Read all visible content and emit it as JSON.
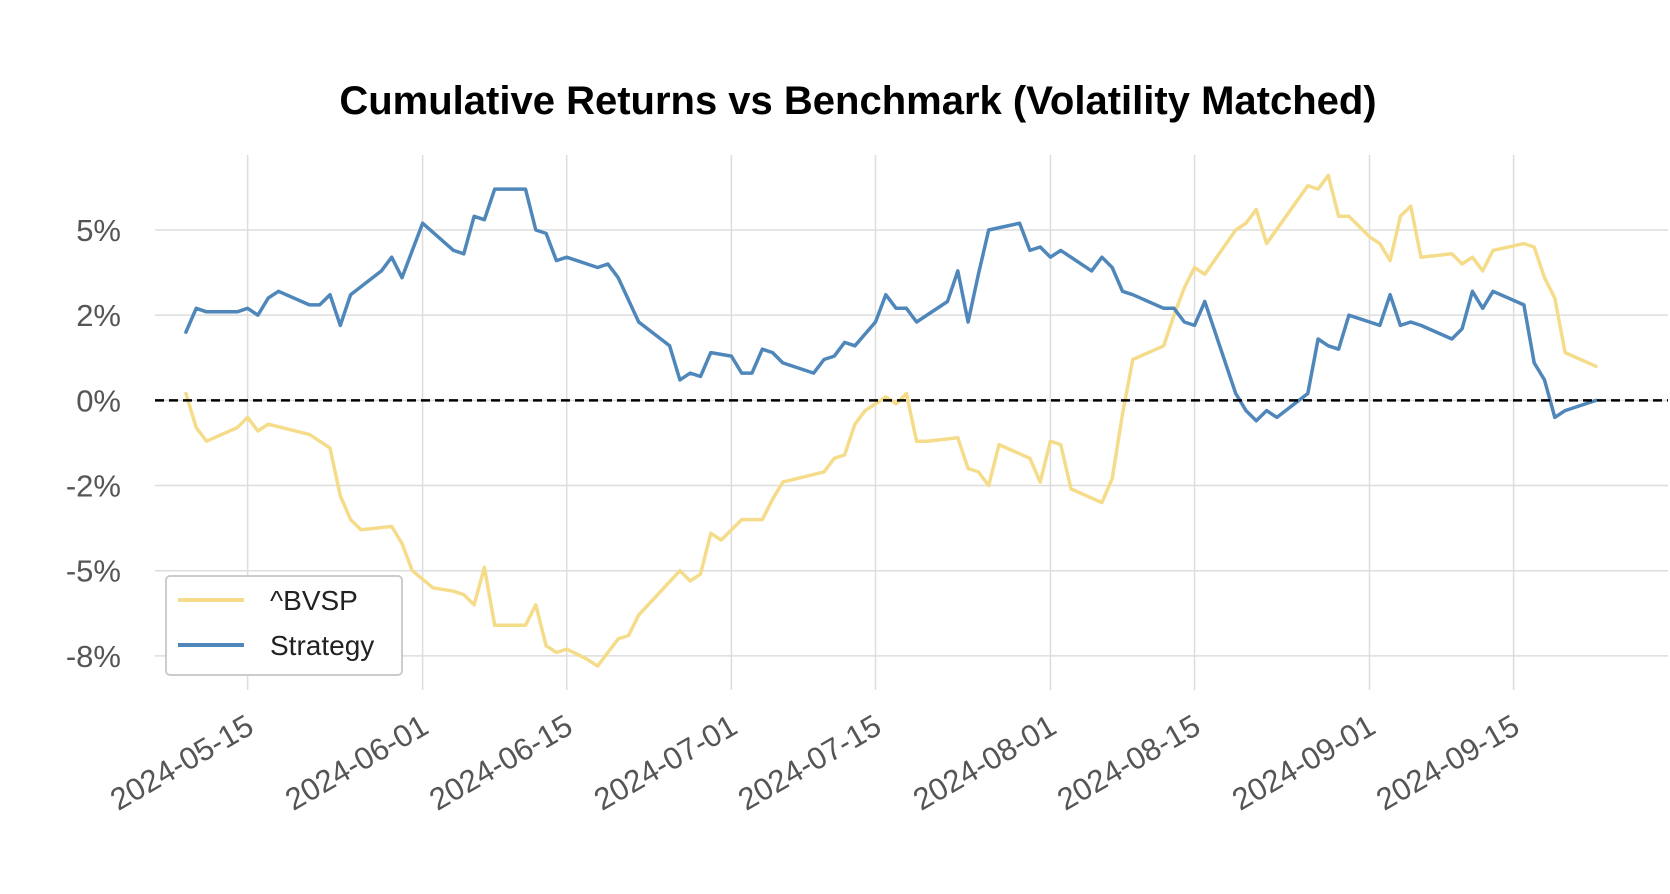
{
  "chart_data": {
    "type": "line",
    "title": "Cumulative Returns vs Benchmark (Volatility Matched)",
    "xlabel": "",
    "ylabel": "",
    "x_type": "date",
    "xlim": [
      "2024-05-06",
      "2024-09-30"
    ],
    "ylim": [
      -0.085,
      0.072
    ],
    "y_ticks": [
      {
        "value": 0.05,
        "label": "5%"
      },
      {
        "value": 0.025,
        "label": "2%"
      },
      {
        "value": 0,
        "label": "0%"
      },
      {
        "value": -0.025,
        "label": "-2%"
      },
      {
        "value": -0.05,
        "label": "-5%"
      },
      {
        "value": -0.075,
        "label": "-8%"
      }
    ],
    "x_ticks": [
      {
        "value": "2024-05-15",
        "label": "2024-05-15"
      },
      {
        "value": "2024-06-01",
        "label": "2024-06-01"
      },
      {
        "value": "2024-06-15",
        "label": "2024-06-15"
      },
      {
        "value": "2024-07-01",
        "label": "2024-07-01"
      },
      {
        "value": "2024-07-15",
        "label": "2024-07-15"
      },
      {
        "value": "2024-08-01",
        "label": "2024-08-01"
      },
      {
        "value": "2024-08-15",
        "label": "2024-08-15"
      },
      {
        "value": "2024-09-01",
        "label": "2024-09-01"
      },
      {
        "value": "2024-09-15",
        "label": "2024-09-15"
      }
    ],
    "grid": true,
    "legend_position": "lower-left",
    "reference_line": {
      "y": 0,
      "style": "dashed",
      "color": "#000000"
    },
    "series": [
      {
        "name": "^BVSP",
        "color": "#f5dc8a",
        "points": [
          [
            "2024-05-09",
            0.002
          ],
          [
            "2024-05-10",
            -0.008
          ],
          [
            "2024-05-11",
            -0.012
          ],
          [
            "2024-05-14",
            -0.008
          ],
          [
            "2024-05-15",
            -0.005
          ],
          [
            "2024-05-16",
            -0.009
          ],
          [
            "2024-05-17",
            -0.007
          ],
          [
            "2024-05-21",
            -0.01
          ],
          [
            "2024-05-22",
            -0.012
          ],
          [
            "2024-05-23",
            -0.014
          ],
          [
            "2024-05-24",
            -0.028
          ],
          [
            "2024-05-25",
            -0.035
          ],
          [
            "2024-05-26",
            -0.038
          ],
          [
            "2024-05-29",
            -0.037
          ],
          [
            "2024-05-30",
            -0.042
          ],
          [
            "2024-05-31",
            -0.05
          ],
          [
            "2024-06-02",
            -0.055
          ],
          [
            "2024-06-04",
            -0.056
          ],
          [
            "2024-06-05",
            -0.057
          ],
          [
            "2024-06-06",
            -0.06
          ],
          [
            "2024-06-07",
            -0.049
          ],
          [
            "2024-06-08",
            -0.066
          ],
          [
            "2024-06-11",
            -0.066
          ],
          [
            "2024-06-12",
            -0.06
          ],
          [
            "2024-06-13",
            -0.072
          ],
          [
            "2024-06-14",
            -0.074
          ],
          [
            "2024-06-15",
            -0.073
          ],
          [
            "2024-06-17",
            -0.076
          ],
          [
            "2024-06-18",
            -0.078
          ],
          [
            "2024-06-20",
            -0.07
          ],
          [
            "2024-06-21",
            -0.069
          ],
          [
            "2024-06-22",
            -0.063
          ],
          [
            "2024-06-26",
            -0.05
          ],
          [
            "2024-06-27",
            -0.053
          ],
          [
            "2024-06-28",
            -0.051
          ],
          [
            "2024-06-29",
            -0.039
          ],
          [
            "2024-06-30",
            -0.041
          ],
          [
            "2024-07-02",
            -0.035
          ],
          [
            "2024-07-03",
            -0.035
          ],
          [
            "2024-07-04",
            -0.035
          ],
          [
            "2024-07-05",
            -0.029
          ],
          [
            "2024-07-06",
            -0.024
          ],
          [
            "2024-07-10",
            -0.021
          ],
          [
            "2024-07-11",
            -0.017
          ],
          [
            "2024-07-12",
            -0.016
          ],
          [
            "2024-07-13",
            -0.007
          ],
          [
            "2024-07-14",
            -0.003
          ],
          [
            "2024-07-15",
            -0.001
          ],
          [
            "2024-07-16",
            0.001
          ],
          [
            "2024-07-17",
            -0.001
          ],
          [
            "2024-07-18",
            0.002
          ],
          [
            "2024-07-19",
            -0.012
          ],
          [
            "2024-07-20",
            -0.012
          ],
          [
            "2024-07-23",
            -0.011
          ],
          [
            "2024-07-24",
            -0.02
          ],
          [
            "2024-07-25",
            -0.021
          ],
          [
            "2024-07-26",
            -0.025
          ],
          [
            "2024-07-27",
            -0.013
          ],
          [
            "2024-07-30",
            -0.017
          ],
          [
            "2024-07-31",
            -0.024
          ],
          [
            "2024-08-01",
            -0.012
          ],
          [
            "2024-08-02",
            -0.013
          ],
          [
            "2024-08-03",
            -0.026
          ],
          [
            "2024-08-06",
            -0.03
          ],
          [
            "2024-08-07",
            -0.023
          ],
          [
            "2024-08-08",
            -0.004
          ],
          [
            "2024-08-09",
            0.012
          ],
          [
            "2024-08-12",
            0.016
          ],
          [
            "2024-08-13",
            0.025
          ],
          [
            "2024-08-14",
            0.033
          ],
          [
            "2024-08-15",
            0.039
          ],
          [
            "2024-08-16",
            0.037
          ],
          [
            "2024-08-19",
            0.05
          ],
          [
            "2024-08-20",
            0.052
          ],
          [
            "2024-08-21",
            0.056
          ],
          [
            "2024-08-22",
            0.046
          ],
          [
            "2024-08-26",
            0.063
          ],
          [
            "2024-08-27",
            0.062
          ],
          [
            "2024-08-28",
            0.066
          ],
          [
            "2024-08-29",
            0.054
          ],
          [
            "2024-08-30",
            0.054
          ],
          [
            "2024-09-01",
            0.048
          ],
          [
            "2024-09-02",
            0.046
          ],
          [
            "2024-09-03",
            0.041
          ],
          [
            "2024-09-04",
            0.054
          ],
          [
            "2024-09-05",
            0.057
          ],
          [
            "2024-09-06",
            0.042
          ],
          [
            "2024-09-09",
            0.043
          ],
          [
            "2024-09-10",
            0.04
          ],
          [
            "2024-09-11",
            0.042
          ],
          [
            "2024-09-12",
            0.038
          ],
          [
            "2024-09-13",
            0.044
          ],
          [
            "2024-09-16",
            0.046
          ],
          [
            "2024-09-17",
            0.045
          ],
          [
            "2024-09-18",
            0.036
          ],
          [
            "2024-09-19",
            0.03
          ],
          [
            "2024-09-20",
            0.014
          ],
          [
            "2024-09-23",
            0.01
          ]
        ]
      },
      {
        "name": "Strategy",
        "color": "#4f87ba",
        "points": [
          [
            "2024-05-09",
            0.02
          ],
          [
            "2024-05-10",
            0.027
          ],
          [
            "2024-05-11",
            0.026
          ],
          [
            "2024-05-14",
            0.026
          ],
          [
            "2024-05-15",
            0.027
          ],
          [
            "2024-05-16",
            0.025
          ],
          [
            "2024-05-17",
            0.03
          ],
          [
            "2024-05-18",
            0.032
          ],
          [
            "2024-05-21",
            0.028
          ],
          [
            "2024-05-22",
            0.028
          ],
          [
            "2024-05-23",
            0.031
          ],
          [
            "2024-05-24",
            0.022
          ],
          [
            "2024-05-25",
            0.031
          ],
          [
            "2024-05-28",
            0.038
          ],
          [
            "2024-05-29",
            0.042
          ],
          [
            "2024-05-30",
            0.036
          ],
          [
            "2024-06-01",
            0.052
          ],
          [
            "2024-06-04",
            0.044
          ],
          [
            "2024-06-05",
            0.043
          ],
          [
            "2024-06-06",
            0.054
          ],
          [
            "2024-06-07",
            0.053
          ],
          [
            "2024-06-08",
            0.062
          ],
          [
            "2024-06-11",
            0.062
          ],
          [
            "2024-06-12",
            0.05
          ],
          [
            "2024-06-13",
            0.049
          ],
          [
            "2024-06-14",
            0.041
          ],
          [
            "2024-06-15",
            0.042
          ],
          [
            "2024-06-18",
            0.039
          ],
          [
            "2024-06-19",
            0.04
          ],
          [
            "2024-06-20",
            0.036
          ],
          [
            "2024-06-22",
            0.023
          ],
          [
            "2024-06-25",
            0.016
          ],
          [
            "2024-06-26",
            0.006
          ],
          [
            "2024-06-27",
            0.008
          ],
          [
            "2024-06-28",
            0.007
          ],
          [
            "2024-06-29",
            0.014
          ],
          [
            "2024-07-01",
            0.013
          ],
          [
            "2024-07-02",
            0.008
          ],
          [
            "2024-07-03",
            0.008
          ],
          [
            "2024-07-04",
            0.015
          ],
          [
            "2024-07-05",
            0.014
          ],
          [
            "2024-07-06",
            0.011
          ],
          [
            "2024-07-09",
            0.008
          ],
          [
            "2024-07-10",
            0.012
          ],
          [
            "2024-07-11",
            0.013
          ],
          [
            "2024-07-12",
            0.017
          ],
          [
            "2024-07-13",
            0.016
          ],
          [
            "2024-07-15",
            0.023
          ],
          [
            "2024-07-16",
            0.031
          ],
          [
            "2024-07-17",
            0.027
          ],
          [
            "2024-07-18",
            0.027
          ],
          [
            "2024-07-19",
            0.023
          ],
          [
            "2024-07-22",
            0.029
          ],
          [
            "2024-07-23",
            0.038
          ],
          [
            "2024-07-24",
            0.023
          ],
          [
            "2024-07-25",
            0.037
          ],
          [
            "2024-07-26",
            0.05
          ],
          [
            "2024-07-29",
            0.052
          ],
          [
            "2024-07-30",
            0.044
          ],
          [
            "2024-07-31",
            0.045
          ],
          [
            "2024-08-01",
            0.042
          ],
          [
            "2024-08-02",
            0.044
          ],
          [
            "2024-08-05",
            0.038
          ],
          [
            "2024-08-06",
            0.042
          ],
          [
            "2024-08-07",
            0.039
          ],
          [
            "2024-08-08",
            0.032
          ],
          [
            "2024-08-09",
            0.031
          ],
          [
            "2024-08-12",
            0.027
          ],
          [
            "2024-08-13",
            0.027
          ],
          [
            "2024-08-14",
            0.023
          ],
          [
            "2024-08-15",
            0.022
          ],
          [
            "2024-08-16",
            0.029
          ],
          [
            "2024-08-19",
            0.002
          ],
          [
            "2024-08-20",
            -0.003
          ],
          [
            "2024-08-21",
            -0.006
          ],
          [
            "2024-08-22",
            -0.003
          ],
          [
            "2024-08-23",
            -0.005
          ],
          [
            "2024-08-26",
            0.002
          ],
          [
            "2024-08-27",
            0.018
          ],
          [
            "2024-08-28",
            0.016
          ],
          [
            "2024-08-29",
            0.015
          ],
          [
            "2024-08-30",
            0.025
          ],
          [
            "2024-09-02",
            0.022
          ],
          [
            "2024-09-03",
            0.031
          ],
          [
            "2024-09-04",
            0.022
          ],
          [
            "2024-09-05",
            0.023
          ],
          [
            "2024-09-06",
            0.022
          ],
          [
            "2024-09-09",
            0.018
          ],
          [
            "2024-09-10",
            0.021
          ],
          [
            "2024-09-11",
            0.032
          ],
          [
            "2024-09-12",
            0.027
          ],
          [
            "2024-09-13",
            0.032
          ],
          [
            "2024-09-16",
            0.028
          ],
          [
            "2024-09-17",
            0.011
          ],
          [
            "2024-09-18",
            0.006
          ],
          [
            "2024-09-19",
            -0.005
          ],
          [
            "2024-09-20",
            -0.003
          ],
          [
            "2024-09-23",
            0.0
          ]
        ]
      }
    ]
  }
}
